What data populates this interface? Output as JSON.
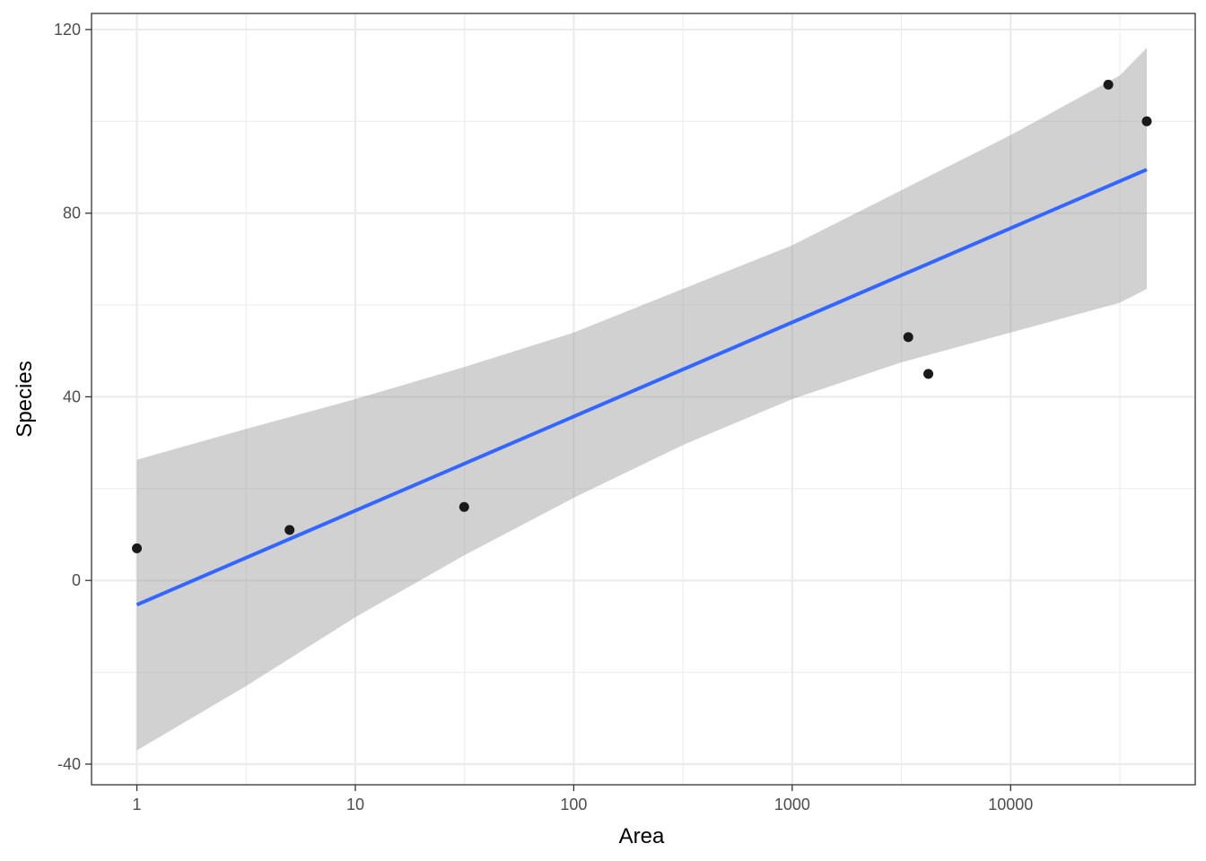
{
  "chart_data": {
    "type": "scatter",
    "xlabel": "Area",
    "ylabel": "Species",
    "x_scale": "log10",
    "xlim": [
      0.62,
      70000
    ],
    "ylim": [
      -44.5,
      123.5
    ],
    "x_ticks": [
      1,
      10,
      100,
      1000,
      10000
    ],
    "x_tick_labels": [
      "1",
      "10",
      "100",
      "1000",
      "10000"
    ],
    "y_ticks": [
      -40,
      0,
      40,
      80,
      120
    ],
    "y_tick_labels": [
      "-40",
      "0",
      "40",
      "80",
      "120"
    ],
    "grid": true,
    "points": [
      {
        "x": 1,
        "y": 7
      },
      {
        "x": 5,
        "y": 11
      },
      {
        "x": 31.5,
        "y": 16
      },
      {
        "x": 3400,
        "y": 53
      },
      {
        "x": 4200,
        "y": 45
      },
      {
        "x": 28000,
        "y": 108
      },
      {
        "x": 42000,
        "y": 100
      }
    ],
    "fit_line": {
      "method": "linear regression on log10(Area)",
      "from": {
        "x": 1,
        "y": -5.3
      },
      "to": {
        "x": 42000,
        "y": 89.5
      }
    },
    "confidence_band": [
      {
        "x": 1,
        "lower": -37,
        "upper": 26.3
      },
      {
        "x": 3.16,
        "lower": -23,
        "upper": 33
      },
      {
        "x": 10,
        "lower": -8,
        "upper": 39.5
      },
      {
        "x": 31.6,
        "lower": 5.5,
        "upper": 46.5
      },
      {
        "x": 100,
        "lower": 18,
        "upper": 54
      },
      {
        "x": 316,
        "lower": 29.5,
        "upper": 63.5
      },
      {
        "x": 1000,
        "lower": 39.5,
        "upper": 73
      },
      {
        "x": 3162,
        "lower": 47.5,
        "upper": 85
      },
      {
        "x": 10000,
        "lower": 54,
        "upper": 97
      },
      {
        "x": 31623,
        "lower": 60.5,
        "upper": 110
      },
      {
        "x": 42000,
        "lower": 63.5,
        "upper": 116
      }
    ],
    "colors": {
      "points": "#1a1a1a",
      "line": "#3366ff",
      "band": "#999999",
      "grid": "#ebebeb",
      "border": "#333333"
    }
  }
}
